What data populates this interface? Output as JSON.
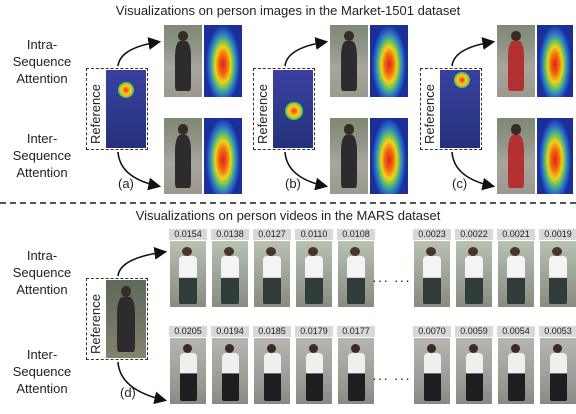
{
  "top_title": "Visualizations on person images in the Market-1501 dataset",
  "bottom_title": "Visualizations on person videos in the MARS dataset",
  "intra_label": "Intra-\nSequence\nAttention",
  "inter_label": "Inter-\nSequence\nAttention",
  "reference_label": "Reference",
  "panels": [
    "(a)",
    "(b)",
    "(c)",
    "(d)"
  ],
  "intra_scores": [
    "0.0154",
    "0.0138",
    "0.0127",
    "0.0110",
    "0.0108",
    "0.0023",
    "0.0022",
    "0.0021",
    "0.0019"
  ],
  "inter_scores": [
    "0.0205",
    "0.0194",
    "0.0185",
    "0.0179",
    "0.0177",
    "0.0070",
    "0.0059",
    "0.0054",
    "0.0053"
  ],
  "ellipsis": "··· ···"
}
